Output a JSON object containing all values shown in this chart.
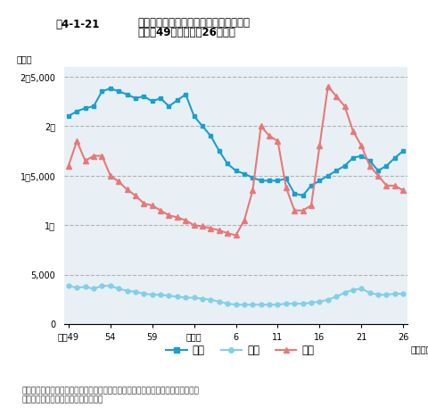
{
  "title_line1": "騒音・振動・悪臭に係る苦情件数の推移",
  "title_line2": "（昭和49年度〜平成26年度）",
  "fig_label": "図4-1-21",
  "ylabel": "（件）",
  "xlabel_end": "（年度）",
  "source": "資料：環境省「騒音規制法施行状況調査」、「振動規制法施行状況調査」、「悪臭\n　　　防止法施行状況調査」より作成",
  "years": [
    1974,
    1975,
    1976,
    1977,
    1978,
    1979,
    1980,
    1981,
    1982,
    1983,
    1984,
    1985,
    1986,
    1987,
    1988,
    1989,
    1990,
    1991,
    1992,
    1993,
    1994,
    1995,
    1996,
    1997,
    1998,
    1999,
    2000,
    2001,
    2002,
    2003,
    2004,
    2005,
    2006,
    2007,
    2008,
    2009,
    2010,
    2011,
    2012,
    2013,
    2014
  ],
  "noise": [
    21000,
    21500,
    21800,
    22000,
    23500,
    23800,
    23500,
    23200,
    22800,
    23000,
    22500,
    22800,
    22000,
    22600,
    23200,
    21000,
    20000,
    19000,
    17500,
    16200,
    15500,
    15200,
    14800,
    14500,
    14500,
    14500,
    14700,
    13200,
    13000,
    14000,
    14500,
    15000,
    15500,
    16000,
    16800,
    17000,
    16500,
    15500,
    16000,
    16800,
    17500
  ],
  "vibration": [
    3900,
    3700,
    3800,
    3600,
    3900,
    3900,
    3600,
    3400,
    3300,
    3100,
    3000,
    3000,
    2900,
    2800,
    2700,
    2700,
    2600,
    2500,
    2300,
    2100,
    2000,
    2000,
    2000,
    2000,
    2000,
    2000,
    2100,
    2100,
    2100,
    2200,
    2300,
    2500,
    2800,
    3200,
    3500,
    3600,
    3200,
    3000,
    3000,
    3100,
    3100
  ],
  "odor": [
    16000,
    18500,
    16500,
    17000,
    17000,
    15000,
    14400,
    13600,
    13000,
    12200,
    12000,
    11500,
    11000,
    10800,
    10500,
    10000,
    9900,
    9700,
    9500,
    9200,
    9000,
    10500,
    13500,
    20000,
    19000,
    18500,
    13800,
    11500,
    11500,
    12000,
    18000,
    24000,
    23000,
    22000,
    19500,
    18000,
    16000,
    15000,
    14000,
    14000,
    13500
  ],
  "noise_color": "#1a9fcf",
  "vibration_color": "#82cfe8",
  "odor_color": "#e87878",
  "bg_color": "#e8f0f5",
  "grid_color": "#999999",
  "xtick_labels": [
    "昭和49",
    "54",
    "59",
    "平成元",
    "6",
    "11",
    "16",
    "21",
    "26"
  ],
  "xtick_positions": [
    1974,
    1979,
    1984,
    1989,
    1994,
    1999,
    2004,
    2009,
    2014
  ],
  "ytick_positions": [
    0,
    5000,
    10000,
    15000,
    20000,
    25000
  ],
  "ytick_labels": [
    "0",
    "5,000",
    "1万",
    "1万5,000",
    "2万",
    "2万5,000"
  ],
  "ylim": [
    0,
    26000
  ],
  "legend_labels": [
    "騒音",
    "振動",
    "悪臭"
  ]
}
